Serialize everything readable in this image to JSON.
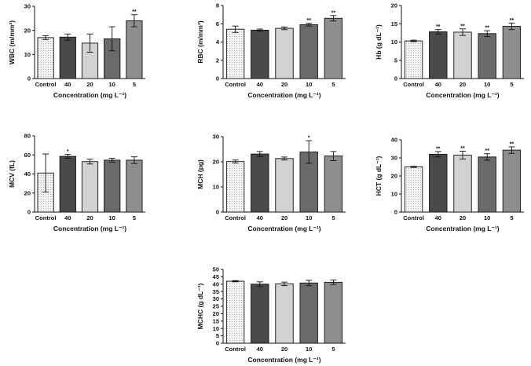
{
  "colors": {
    "control_fill": "#f4f4f4",
    "dose_fills": [
      "#4a4a4a",
      "#d2d2d2",
      "#6a6a6a",
      "#8e8e8e"
    ],
    "stroke": "#111111",
    "pattern_dot": "#9a9a9a"
  },
  "chart_data": [
    {
      "type": "bar",
      "panel": "WBC",
      "ylabel": "WBC (m/mm³)",
      "xlabel": "Concentration (mg L⁻¹)",
      "categories": [
        "Control",
        "40",
        "20",
        "10",
        "5"
      ],
      "values": [
        17,
        17.2,
        14.7,
        16.5,
        24
      ],
      "errors": [
        0.8,
        1.3,
        3.8,
        5,
        2.5
      ],
      "significance": [
        "",
        "",
        "",
        "",
        "**"
      ],
      "ylim": [
        0,
        30
      ],
      "yticks": [
        0,
        10,
        20,
        30
      ]
    },
    {
      "type": "bar",
      "panel": "RBC",
      "ylabel": "RBC (m/mm³)",
      "xlabel": "Concentration (mg L⁻¹)",
      "categories": [
        "Control",
        "40",
        "20",
        "10",
        "5"
      ],
      "values": [
        5.4,
        5.3,
        5.5,
        5.9,
        6.6
      ],
      "errors": [
        0.35,
        0.12,
        0.15,
        0.15,
        0.3
      ],
      "significance": [
        "",
        "",
        "",
        "**",
        "**"
      ],
      "ylim": [
        0,
        8
      ],
      "yticks": [
        0,
        2,
        4,
        6,
        8
      ]
    },
    {
      "type": "bar",
      "panel": "Hb",
      "ylabel": "Hb (g dL⁻¹)",
      "xlabel": "Concentration (mg L⁻¹)",
      "categories": [
        "Control",
        "40",
        "20",
        "10",
        "5"
      ],
      "values": [
        10.3,
        12.8,
        12.7,
        12.3,
        14.3
      ],
      "errors": [
        0.2,
        0.6,
        0.9,
        0.8,
        0.9
      ],
      "significance": [
        "",
        "**",
        "**",
        "**",
        "**"
      ],
      "ylim": [
        0,
        20
      ],
      "yticks": [
        0,
        5,
        10,
        15,
        20
      ]
    },
    {
      "type": "bar",
      "panel": "MCV",
      "ylabel": "MCV (fL)",
      "xlabel": "Concentration (mg L⁻¹)",
      "categories": [
        "Control",
        "40",
        "20",
        "10",
        "5"
      ],
      "values": [
        41,
        58.5,
        53,
        54.5,
        54.5
      ],
      "errors": [
        20,
        2,
        2.5,
        2,
        3.5
      ],
      "significance": [
        "",
        "*",
        "",
        "",
        ""
      ],
      "ylim": [
        0,
        80
      ],
      "yticks": [
        0,
        20,
        40,
        60,
        80
      ]
    },
    {
      "type": "bar",
      "panel": "MCH",
      "ylabel": "MCH (pg)",
      "xlabel": "Concentration (mg L⁻¹)",
      "categories": [
        "Control",
        "40",
        "20",
        "10",
        "5"
      ],
      "values": [
        20.1,
        23.1,
        21.3,
        23.9,
        22.3
      ],
      "errors": [
        0.6,
        1,
        0.6,
        4.5,
        1.8
      ],
      "significance": [
        "",
        "",
        "",
        "*",
        ""
      ],
      "ylim": [
        0,
        30
      ],
      "yticks": [
        0,
        10,
        20,
        30
      ]
    },
    {
      "type": "bar",
      "panel": "HCT",
      "ylabel": "HCT (g dL⁻¹)",
      "xlabel": "Concentration (mg L⁻¹)",
      "categories": [
        "Control",
        "40",
        "20",
        "10",
        "5"
      ],
      "values": [
        25,
        32,
        31.5,
        30.5,
        34.3
      ],
      "errors": [
        0.3,
        1.5,
        2.2,
        1.8,
        1.8
      ],
      "significance": [
        "",
        "**",
        "**",
        "**",
        "**"
      ],
      "ylim": [
        0,
        40
      ],
      "yticks": [
        0,
        10,
        20,
        30,
        40
      ]
    },
    {
      "type": "bar",
      "panel": "MCHC",
      "ylabel": "MCHC (g dL⁻¹)",
      "xlabel": "Concentration (mg L⁻¹)",
      "categories": [
        "Control",
        "40",
        "20",
        "10",
        "5"
      ],
      "values": [
        42,
        40,
        40.2,
        40.8,
        41.3
      ],
      "errors": [
        0.4,
        1.6,
        1.2,
        1.8,
        1.5
      ],
      "significance": [
        "",
        "",
        "",
        "",
        ""
      ],
      "ylim": [
        0,
        50
      ],
      "yticks": [
        0,
        5,
        10,
        15,
        20,
        25,
        30,
        35,
        40,
        45,
        50
      ]
    }
  ]
}
